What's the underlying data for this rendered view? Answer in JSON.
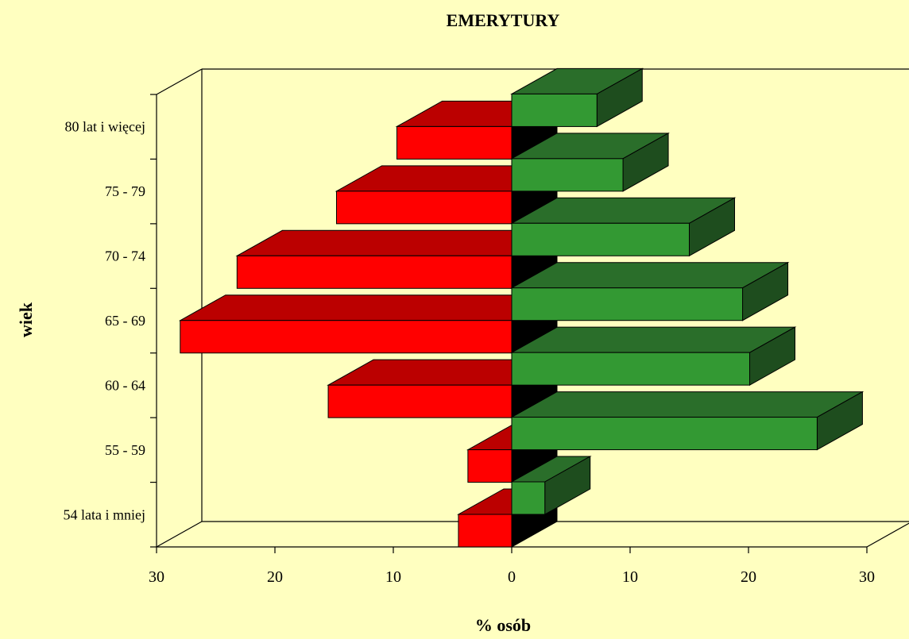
{
  "chart_data": {
    "type": "bar",
    "title": "EMERYTURY",
    "xlabel": "% osób",
    "ylabel": "wiek",
    "categories": [
      "54 lata i mniej",
      "55 - 59",
      "60 - 64",
      "65 - 69",
      "70 - 74",
      "75 - 79",
      "80 lat i więcej"
    ],
    "x_ticks": [
      "30",
      "20",
      "10",
      "0",
      "10",
      "20",
      "30"
    ],
    "xlim": [
      -30,
      30
    ],
    "series": [
      {
        "values": [
          4.5,
          3.7,
          15.5,
          28.0,
          23.2,
          14.8,
          9.7
        ],
        "color": "#ff0000"
      },
      {
        "values": [
          2.8,
          25.8,
          20.1,
          19.5,
          15.0,
          9.4,
          7.2
        ],
        "color": "#339933"
      }
    ],
    "grid": false,
    "style": "3d-horizontal-pyramid"
  }
}
